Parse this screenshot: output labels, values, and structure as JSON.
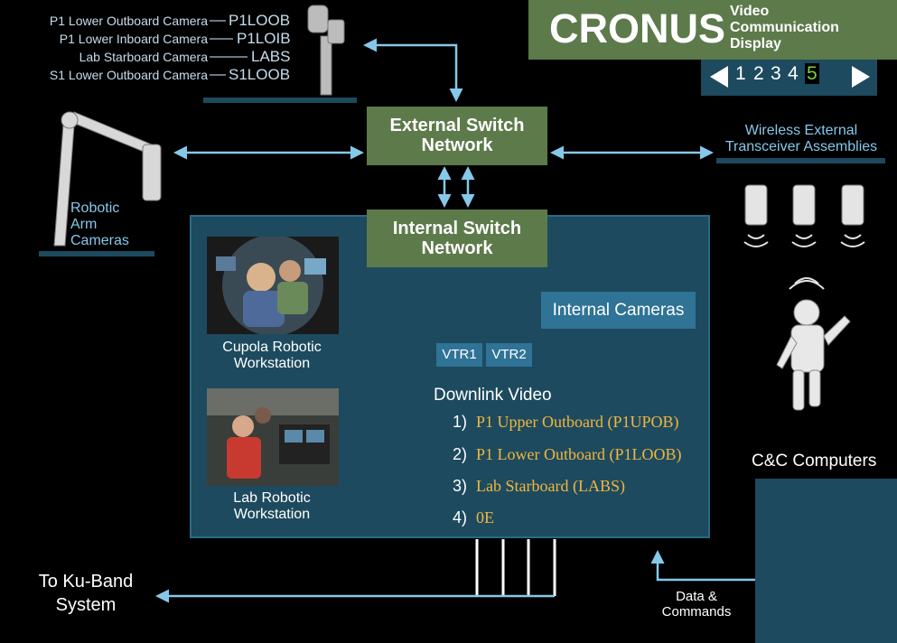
{
  "header": {
    "title": "CRONUS",
    "subtitle_lines": [
      "Video",
      "Communication",
      "Display"
    ]
  },
  "pager": {
    "pages": [
      "1",
      "2",
      "3",
      "4",
      "5"
    ],
    "active_page": "5"
  },
  "external_cameras": [
    {
      "name": "P1 Lower Outboard Camera",
      "code": "P1LOOB"
    },
    {
      "name": "P1 Lower Inboard Camera",
      "code": "P1LOIB"
    },
    {
      "name": "Lab Starboard Camera",
      "code": "LABS"
    },
    {
      "name": "S1 Lower Outboard Camera",
      "code": "S1LOOB"
    }
  ],
  "robotic_arm_cameras": [
    "Robotic",
    "Arm",
    "Cameras"
  ],
  "external_switch": [
    "External Switch",
    "Network"
  ],
  "internal_switch": [
    "Internal Switch",
    "Network"
  ],
  "wireless": [
    "Wireless External",
    "Transceiver Assemblies"
  ],
  "internal_cameras": "Internal Cameras",
  "cupola": [
    "Cupola Robotic",
    "Workstation"
  ],
  "lab_workstation": [
    "Lab Robotic",
    "Workstation"
  ],
  "vtr": [
    "VTR1",
    "VTR2"
  ],
  "downlink": {
    "title": "Downlink Video",
    "items": [
      {
        "num": "1)",
        "label": "P1 Upper Outboard (P1UPOB)"
      },
      {
        "num": "2)",
        "label": "P1 Lower Outboard (P1LOOB)"
      },
      {
        "num": "3)",
        "label": "Lab Starboard (LABS)"
      },
      {
        "num": "4)",
        "label": "0E"
      }
    ]
  },
  "cc_computers": "C&C Computers",
  "data_commands": [
    "Data &",
    "Commands"
  ],
  "ku_band": [
    "To Ku-Band",
    "System"
  ],
  "colors": {
    "accent_green": "#5d7a4b",
    "panel_blue": "#1d4a5e",
    "arrow": "#86c8ea",
    "downlink_text": "#f2b640"
  }
}
